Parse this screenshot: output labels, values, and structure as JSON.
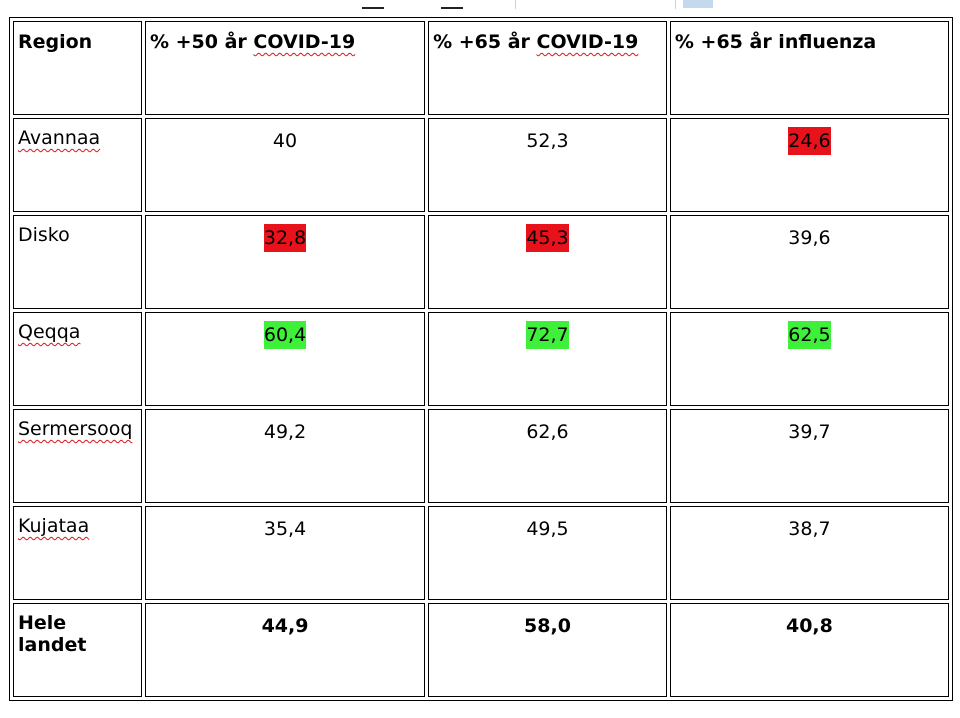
{
  "table": {
    "headers": [
      "Region",
      "% +50 år COVID-19",
      "% +65 år COVID-19",
      "% +65 år influenza"
    ],
    "rows": [
      {
        "region": "Avannaa",
        "values": [
          "40",
          "52,3",
          "24,6"
        ],
        "highlight": [
          "",
          "",
          "red"
        ]
      },
      {
        "region": "Disko",
        "values": [
          "32,8",
          "45,3",
          "39,6"
        ],
        "highlight": [
          "red",
          "red",
          ""
        ]
      },
      {
        "region": "Qeqqa",
        "values": [
          "60,4",
          "72,7",
          "62,5"
        ],
        "highlight": [
          "green",
          "green",
          "green"
        ]
      },
      {
        "region": "Sermersooq",
        "values": [
          "49,2",
          "62,6",
          "39,7"
        ],
        "highlight": [
          "",
          "",
          ""
        ]
      },
      {
        "region": "Kujataa",
        "values": [
          "35,4",
          "49,5",
          "38,7"
        ],
        "highlight": [
          "",
          "",
          ""
        ]
      }
    ],
    "total": {
      "region": "Hele landet",
      "values": [
        "44,9",
        "58,0",
        "40,8"
      ]
    }
  },
  "colors": {
    "highlight_red": "#e8121b",
    "highlight_green": "#3ef03a",
    "spellcheck_underline": "#d8141a"
  }
}
